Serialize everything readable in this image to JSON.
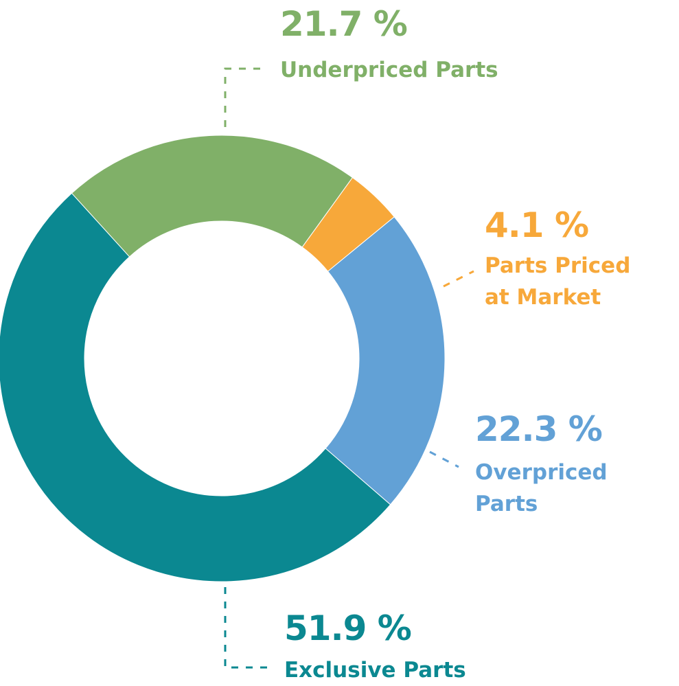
{
  "chart_data": {
    "type": "pie",
    "donut": true,
    "segments": [
      {
        "label": "Underpriced Parts",
        "label_lines": [
          "Underpriced Parts"
        ],
        "value": 21.7,
        "display": "21.7 %",
        "color": "#80b068"
      },
      {
        "label": "Parts Priced at Market",
        "label_lines": [
          "Parts Priced",
          "at Market"
        ],
        "value": 4.1,
        "display": "4.1 %",
        "color": "#f7a83a"
      },
      {
        "label": "Overpriced Parts",
        "label_lines": [
          "Overpriced",
          "Parts"
        ],
        "value": 22.3,
        "display": "22.3 %",
        "color": "#62a1d6"
      },
      {
        "label": "Exclusive Parts",
        "label_lines": [
          "Exclusive Parts"
        ],
        "value": 51.9,
        "display": "51.9 %",
        "color": "#0b8891"
      }
    ]
  }
}
